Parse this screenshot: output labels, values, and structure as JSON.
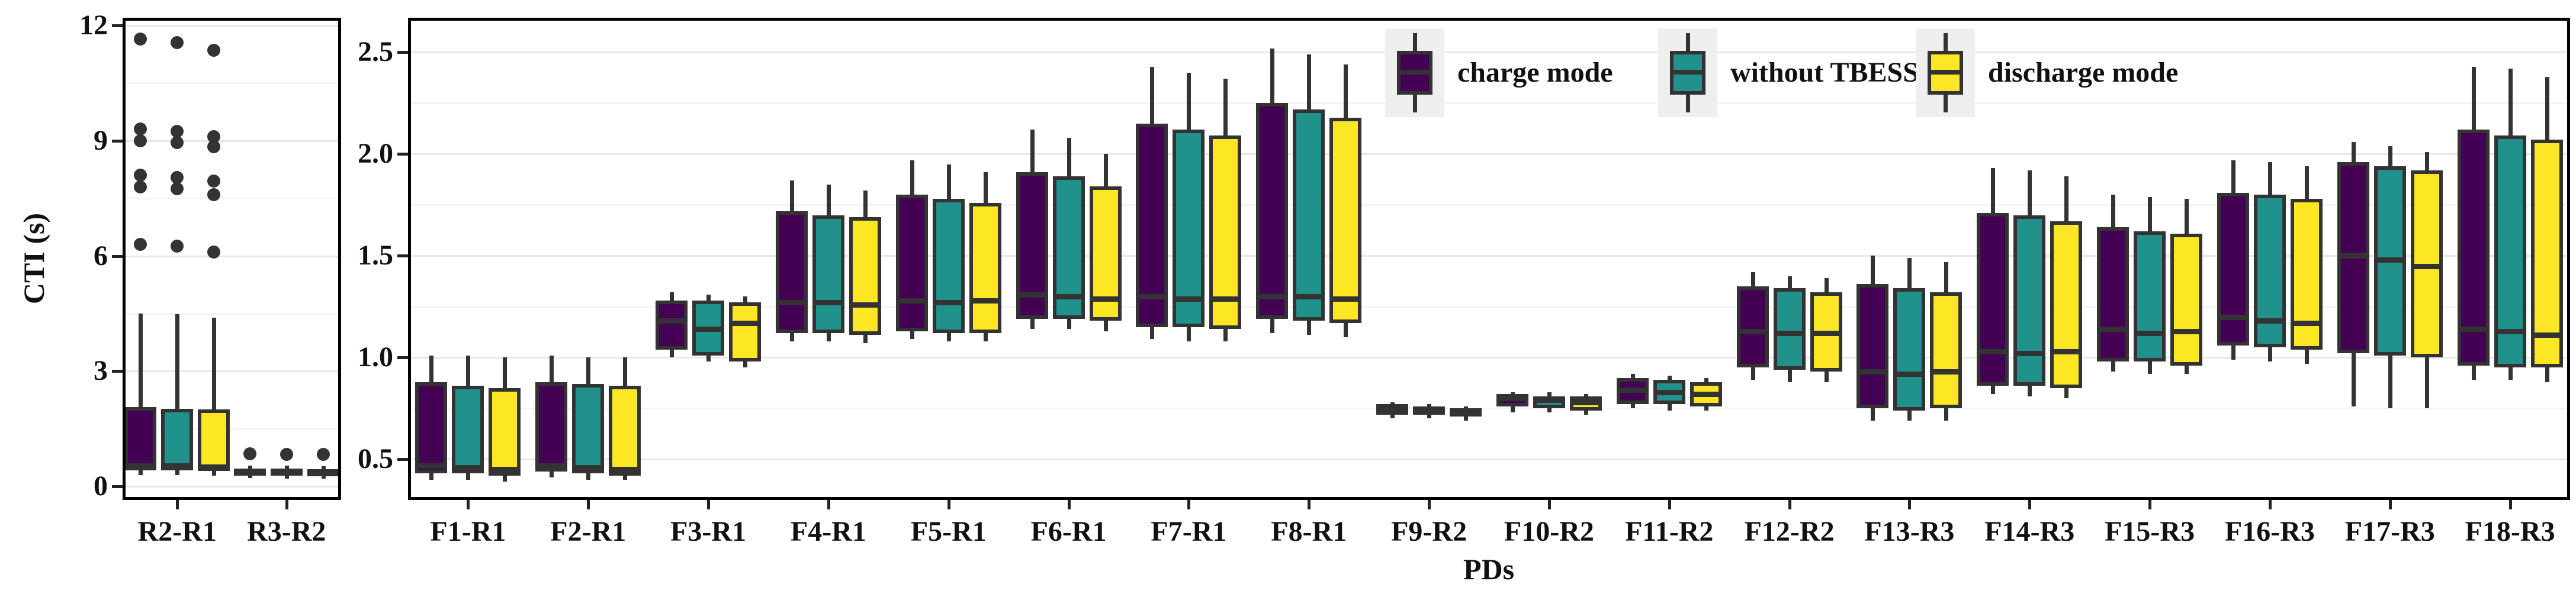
{
  "title": "",
  "axis_labels": {
    "y": "CTI (s)",
    "x": "PDs"
  },
  "colors": {
    "charge_mode": "#440154",
    "without_tbess": "#21918c",
    "discharge_mode": "#fde725",
    "box_stroke": "#333333",
    "grid_major": "#e7e7e7",
    "grid_minor": "#f4f4f4",
    "panel_border": "#000000",
    "background": "#ffffff"
  },
  "legend": {
    "position": "top-right-inside",
    "entries": [
      "charge mode",
      "without TBESS",
      "discharge mode"
    ]
  },
  "chart_data": [
    {
      "type": "box",
      "panel": "left",
      "ylabel": "CTI (s)",
      "ylim": [
        -0.35,
        12.2
      ],
      "yticks": [
        0,
        3,
        6,
        9,
        12
      ],
      "ytick_labels": [
        "0",
        "3",
        "6",
        "9",
        "12"
      ],
      "yminor": [
        1.5,
        4.5,
        7.5,
        10.5
      ],
      "grid": true,
      "categories": [
        "R2-R1",
        "R3-R2"
      ],
      "series": [
        {
          "name": "charge mode",
          "color": "#440154",
          "boxes": [
            {
              "b": [
                0.3,
                0.42,
                0.55,
                2.07,
                4.5
              ],
              "out": [
                6.3,
                7.8,
                8.1,
                9.0,
                9.3,
                11.65
              ]
            },
            {
              "b": [
                0.22,
                0.3,
                0.38,
                0.47,
                0.55
              ],
              "out": [
                0.85
              ]
            }
          ]
        },
        {
          "name": "without TBESS",
          "color": "#21918c",
          "boxes": [
            {
              "b": [
                0.3,
                0.42,
                0.54,
                2.02,
                4.48
              ],
              "out": [
                6.25,
                7.75,
                8.05,
                8.95,
                9.25,
                11.55
              ]
            },
            {
              "b": [
                0.21,
                0.29,
                0.37,
                0.46,
                0.54
              ],
              "out": [
                0.84
              ]
            }
          ]
        },
        {
          "name": "discharge mode",
          "color": "#fde725",
          "boxes": [
            {
              "b": [
                0.28,
                0.4,
                0.52,
                2.0,
                4.4
              ],
              "out": [
                6.1,
                7.6,
                7.95,
                8.85,
                9.1,
                11.35
              ]
            },
            {
              "b": [
                0.2,
                0.28,
                0.36,
                0.45,
                0.53
              ],
              "out": [
                0.83
              ]
            }
          ]
        }
      ]
    },
    {
      "type": "box",
      "panel": "right",
      "xlabel": "PDs",
      "ylim": [
        0.3,
        2.67
      ],
      "yticks": [
        0.5,
        1.0,
        1.5,
        2.0,
        2.5
      ],
      "ytick_labels": [
        "0.5",
        "1.0",
        "1.5",
        "2.0",
        "2.5"
      ],
      "yminor": [
        0.75,
        1.25,
        1.75,
        2.25
      ],
      "grid": true,
      "categories": [
        "F1-R1",
        "F2-R1",
        "F3-R1",
        "F4-R1",
        "F5-R1",
        "F6-R1",
        "F7-R1",
        "F8-R1",
        "F9-R2",
        "F10-R2",
        "F11-R2",
        "F12-R2",
        "F13-R3",
        "F14-R3",
        "F15-R3",
        "F16-R3",
        "F17-R3",
        "F18-R3"
      ],
      "series": [
        {
          "name": "charge mode",
          "color": "#440154",
          "boxes": [
            {
              "b": [
                0.4,
                0.43,
                0.47,
                0.88,
                1.01
              ]
            },
            {
              "b": [
                0.41,
                0.44,
                0.47,
                0.88,
                1.01
              ]
            },
            {
              "b": [
                1.0,
                1.04,
                1.18,
                1.28,
                1.32
              ]
            },
            {
              "b": [
                1.08,
                1.12,
                1.27,
                1.72,
                1.87
              ]
            },
            {
              "b": [
                1.09,
                1.13,
                1.28,
                1.8,
                1.97
              ]
            },
            {
              "b": [
                1.14,
                1.19,
                1.31,
                1.91,
                2.12
              ]
            },
            {
              "b": [
                1.09,
                1.15,
                1.3,
                2.15,
                2.43
              ]
            },
            {
              "b": [
                1.12,
                1.19,
                1.3,
                2.25,
                2.52
              ]
            },
            {
              "b": [
                0.7,
                0.72,
                0.75,
                0.77,
                0.78
              ]
            },
            {
              "b": [
                0.73,
                0.76,
                0.8,
                0.82,
                0.83
              ]
            },
            {
              "b": [
                0.75,
                0.77,
                0.84,
                0.9,
                0.92
              ]
            },
            {
              "b": [
                0.89,
                0.95,
                1.13,
                1.35,
                1.42
              ]
            },
            {
              "b": [
                0.69,
                0.75,
                0.93,
                1.36,
                1.5
              ]
            },
            {
              "b": [
                0.82,
                0.86,
                1.03,
                1.71,
                1.93
              ]
            },
            {
              "b": [
                0.93,
                0.98,
                1.14,
                1.64,
                1.8
              ]
            },
            {
              "b": [
                0.99,
                1.06,
                1.2,
                1.81,
                1.97
              ]
            },
            {
              "b": [
                0.76,
                1.02,
                1.5,
                1.96,
                2.06
              ]
            },
            {
              "b": [
                0.89,
                0.96,
                1.14,
                2.12,
                2.43
              ]
            }
          ]
        },
        {
          "name": "without TBESS",
          "color": "#21918c",
          "boxes": [
            {
              "b": [
                0.4,
                0.43,
                0.46,
                0.86,
                1.01
              ]
            },
            {
              "b": [
                0.4,
                0.43,
                0.46,
                0.87,
                1.0
              ]
            },
            {
              "b": [
                0.98,
                1.01,
                1.14,
                1.28,
                1.31
              ]
            },
            {
              "b": [
                1.08,
                1.12,
                1.27,
                1.7,
                1.85
              ]
            },
            {
              "b": [
                1.08,
                1.12,
                1.27,
                1.78,
                1.95
              ]
            },
            {
              "b": [
                1.14,
                1.19,
                1.3,
                1.89,
                2.08
              ]
            },
            {
              "b": [
                1.08,
                1.15,
                1.29,
                2.12,
                2.4
              ]
            },
            {
              "b": [
                1.11,
                1.18,
                1.3,
                2.22,
                2.49
              ]
            },
            {
              "b": [
                0.7,
                0.72,
                0.74,
                0.76,
                0.77
              ]
            },
            {
              "b": [
                0.73,
                0.75,
                0.79,
                0.81,
                0.83
              ]
            },
            {
              "b": [
                0.74,
                0.77,
                0.83,
                0.89,
                0.91
              ]
            },
            {
              "b": [
                0.88,
                0.94,
                1.12,
                1.34,
                1.4
              ]
            },
            {
              "b": [
                0.69,
                0.74,
                0.92,
                1.34,
                1.49
              ]
            },
            {
              "b": [
                0.81,
                0.86,
                1.02,
                1.7,
                1.92
              ]
            },
            {
              "b": [
                0.92,
                0.98,
                1.12,
                1.62,
                1.79
              ]
            },
            {
              "b": [
                0.98,
                1.05,
                1.18,
                1.8,
                1.96
              ]
            },
            {
              "b": [
                0.75,
                1.01,
                1.48,
                1.94,
                2.04
              ]
            },
            {
              "b": [
                0.89,
                0.95,
                1.13,
                2.09,
                2.42
              ]
            }
          ]
        },
        {
          "name": "discharge mode",
          "color": "#fde725",
          "boxes": [
            {
              "b": [
                0.39,
                0.42,
                0.45,
                0.85,
                1.0
              ]
            },
            {
              "b": [
                0.4,
                0.42,
                0.45,
                0.86,
                1.0
              ]
            },
            {
              "b": [
                0.95,
                0.98,
                1.17,
                1.27,
                1.3
              ]
            },
            {
              "b": [
                1.07,
                1.11,
                1.26,
                1.69,
                1.82
              ]
            },
            {
              "b": [
                1.08,
                1.12,
                1.28,
                1.76,
                1.91
              ]
            },
            {
              "b": [
                1.13,
                1.18,
                1.29,
                1.84,
                2.0
              ]
            },
            {
              "b": [
                1.08,
                1.14,
                1.29,
                2.09,
                2.37
              ]
            },
            {
              "b": [
                1.1,
                1.17,
                1.29,
                2.18,
                2.44
              ]
            },
            {
              "b": [
                0.69,
                0.71,
                0.73,
                0.75,
                0.76
              ]
            },
            {
              "b": [
                0.72,
                0.74,
                0.78,
                0.81,
                0.82
              ]
            },
            {
              "b": [
                0.74,
                0.76,
                0.82,
                0.88,
                0.9
              ]
            },
            {
              "b": [
                0.88,
                0.93,
                1.12,
                1.32,
                1.39
              ]
            },
            {
              "b": [
                0.69,
                0.75,
                0.93,
                1.32,
                1.47
              ]
            },
            {
              "b": [
                0.8,
                0.85,
                1.03,
                1.67,
                1.89
              ]
            },
            {
              "b": [
                0.92,
                0.96,
                1.13,
                1.61,
                1.78
              ]
            },
            {
              "b": [
                0.97,
                1.04,
                1.17,
                1.78,
                1.94
              ]
            },
            {
              "b": [
                0.75,
                1.0,
                1.45,
                1.92,
                2.01
              ]
            },
            {
              "b": [
                0.88,
                0.95,
                1.11,
                2.07,
                2.38
              ]
            }
          ]
        }
      ]
    }
  ]
}
